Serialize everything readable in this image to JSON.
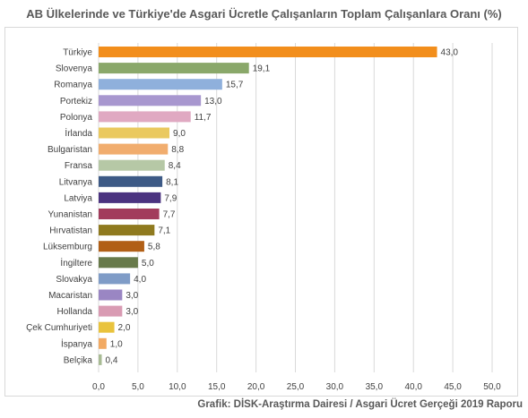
{
  "chart_data": {
    "type": "bar",
    "orientation": "horizontal",
    "title": "AB Ülkelerinde ve Türkiye'de Asgari Ücretle Çalışanların Toplam Çalışanlara Oranı (%)",
    "source": "Grafik: DİSK-Araştırma Dairesi / Asgari Ücret Gerçeği 2019 Raporu",
    "categories": [
      "Türkiye",
      "Slovenya",
      "Romanya",
      "Portekiz",
      "Polonya",
      "İrlanda",
      "Bulgaristan",
      "Fransa",
      "Litvanya",
      "Latviya",
      "Yunanistan",
      "Hırvatistan",
      "Lüksemburg",
      "İngiltere",
      "Slovakya",
      "Macaristan",
      "Hollanda",
      "Çek Cumhuriyeti",
      "İspanya",
      "Belçika"
    ],
    "values": [
      43.0,
      19.1,
      15.7,
      13.0,
      11.7,
      9.0,
      8.8,
      8.4,
      8.1,
      7.9,
      7.7,
      7.1,
      5.8,
      5.0,
      4.0,
      3.0,
      3.0,
      2.0,
      1.0,
      0.4
    ],
    "value_labels": [
      "43,0",
      "19,1",
      "15,7",
      "13,0",
      "11,7",
      "9,0",
      "8,8",
      "8,4",
      "8,1",
      "7,9",
      "7,7",
      "7,1",
      "5,8",
      "5,0",
      "4,0",
      "3,0",
      "3,0",
      "2,0",
      "1,0",
      "0,4"
    ],
    "colors": [
      "#f28e1c",
      "#8aa86a",
      "#8fb0dc",
      "#a897cf",
      "#e0a9c2",
      "#eac95f",
      "#f1ad6e",
      "#b6c8a6",
      "#3d5a86",
      "#4b3380",
      "#a23c5c",
      "#8f7a1f",
      "#b15f16",
      "#687a4a",
      "#7f9cc7",
      "#9a86c3",
      "#d99bb3",
      "#e9c33d",
      "#f2aa63",
      "#a8bb94"
    ],
    "xlim": [
      0,
      50
    ],
    "xticks": [
      "0,0",
      "5,0",
      "10,0",
      "15,0",
      "20,0",
      "25,0",
      "30,0",
      "35,0",
      "40,0",
      "45,0",
      "50,0"
    ],
    "xtick_values": [
      0,
      5,
      10,
      15,
      20,
      25,
      30,
      35,
      40,
      45,
      50
    ],
    "grid": true
  }
}
